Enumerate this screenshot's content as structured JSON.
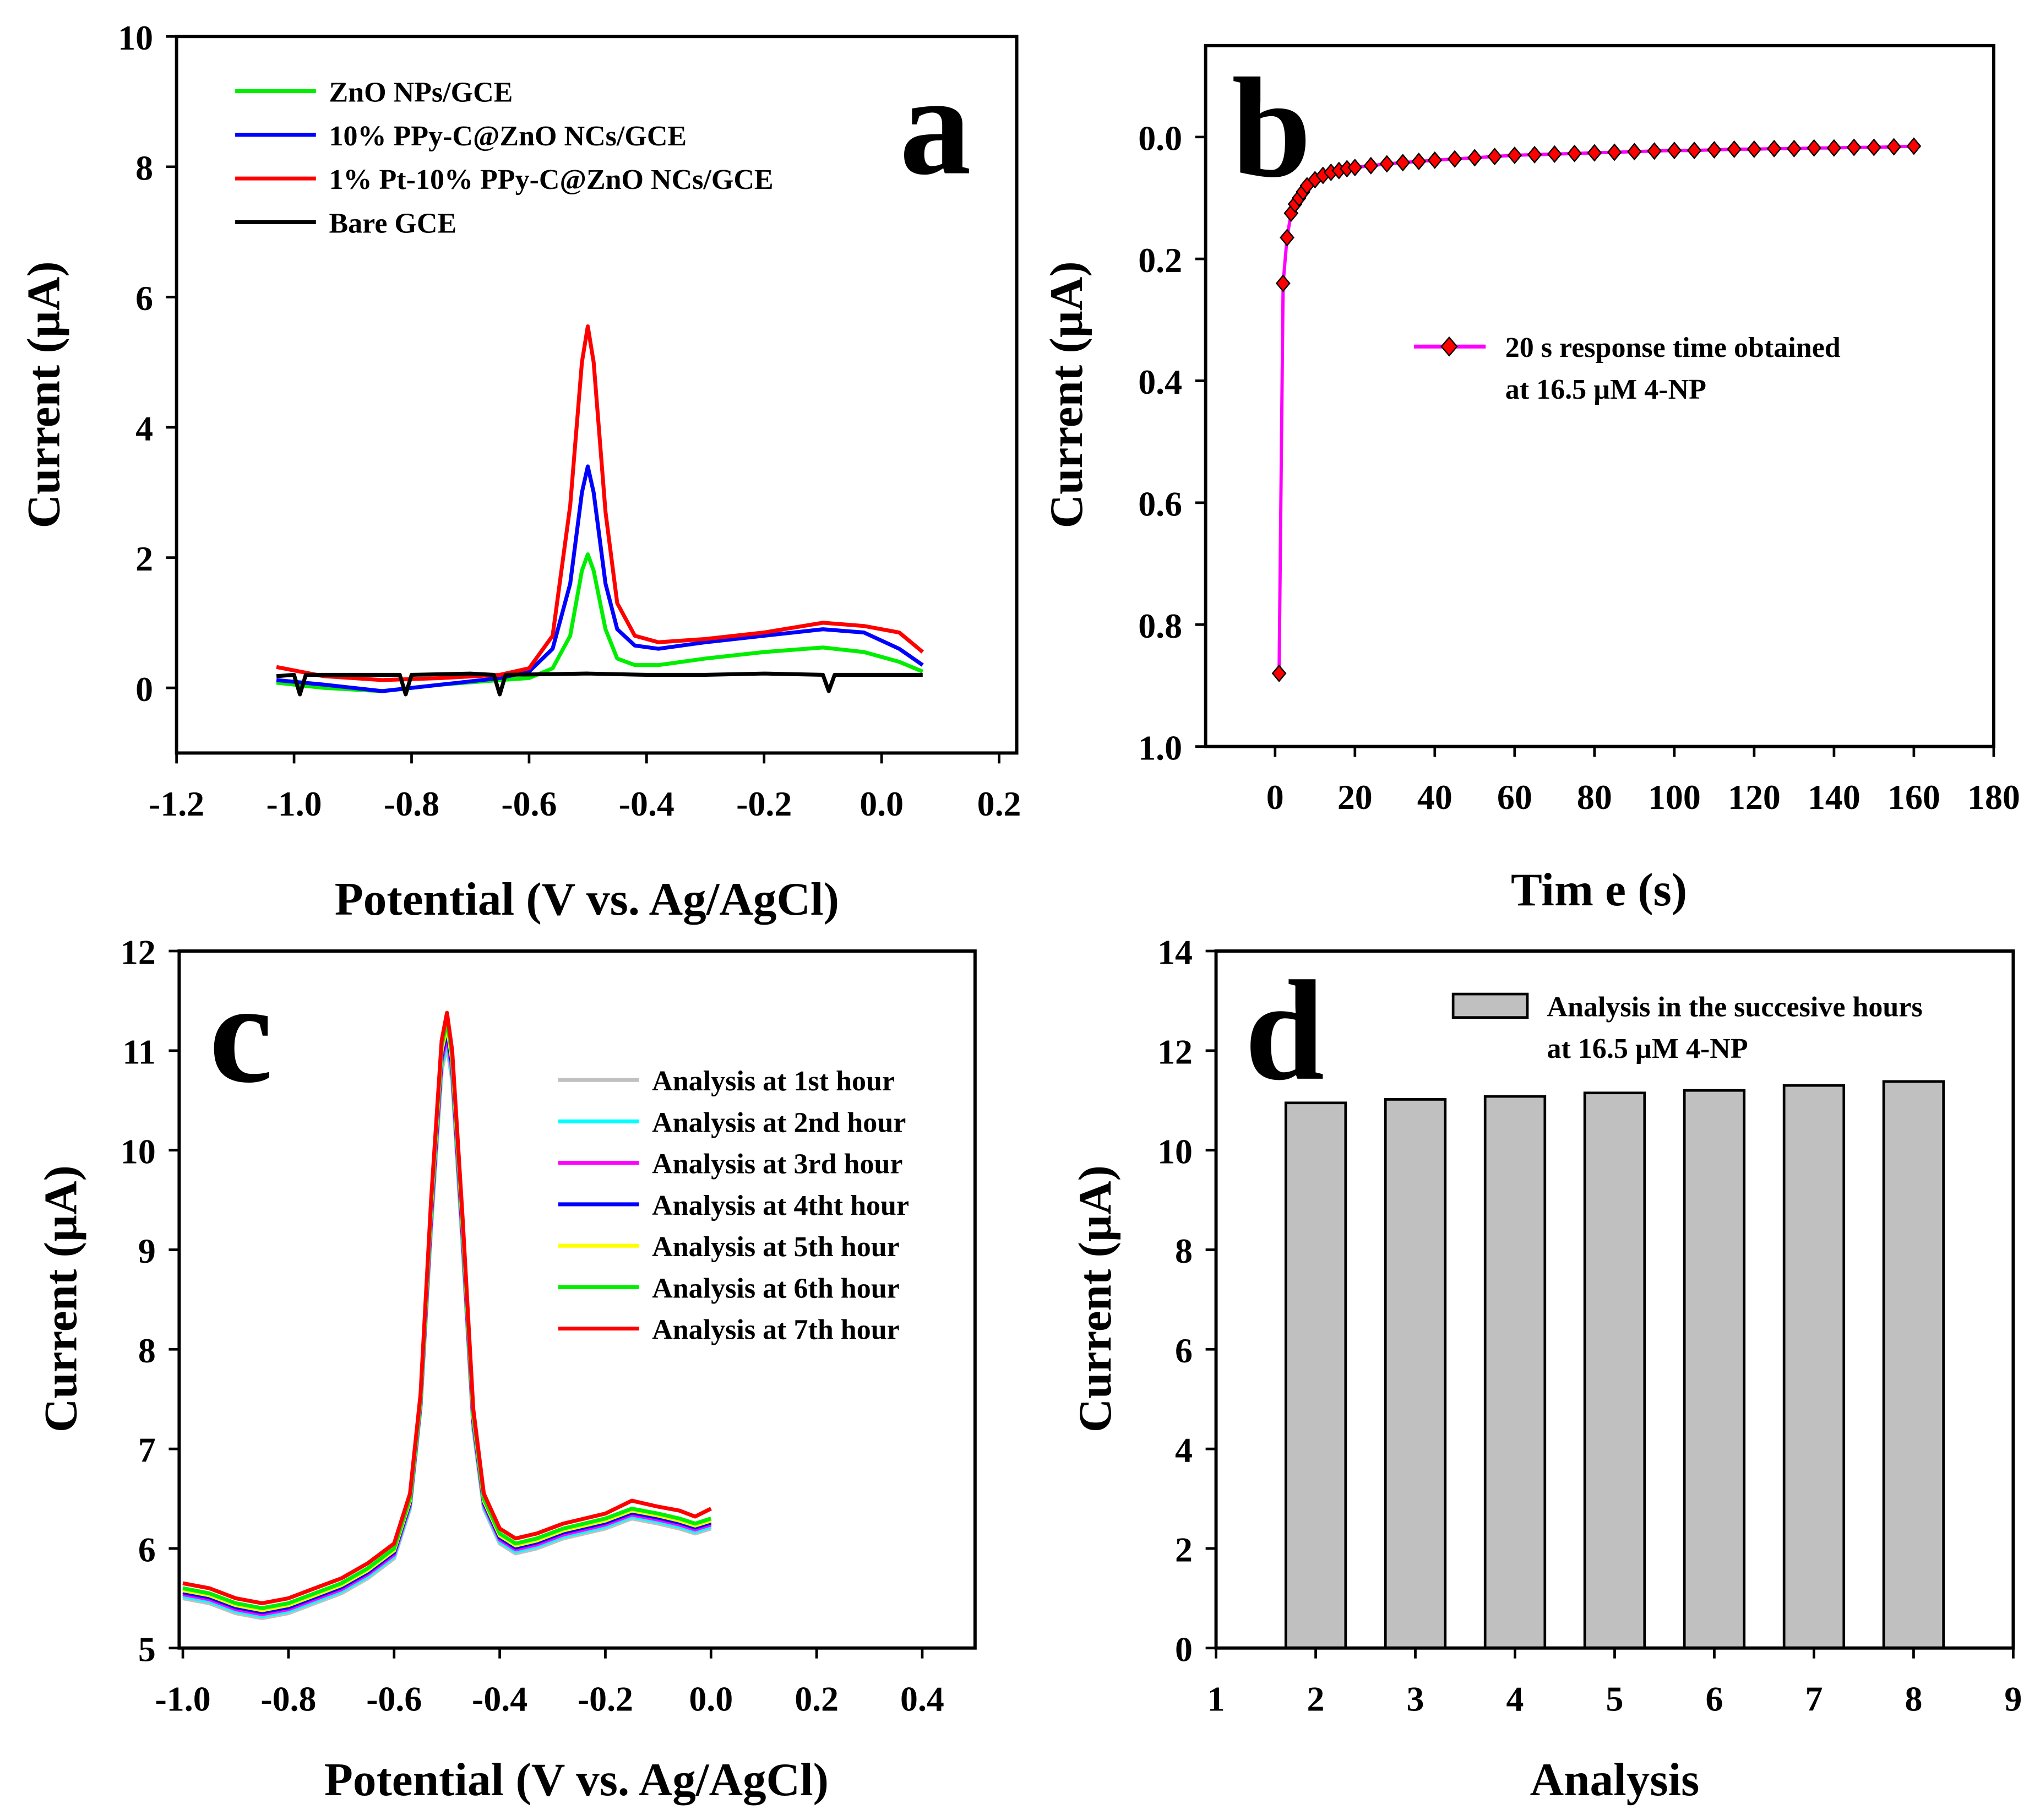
{
  "chart_data": [
    {
      "id": "a",
      "type": "line",
      "panel_label": "a",
      "xlabel": "Potential (V vs. Ag/AgCl)",
      "ylabel": "Current (µA)",
      "xlim": [
        -1.2,
        0.23
      ],
      "ylim": [
        -1,
        10
      ],
      "xticks": [
        -1.2,
        -1.0,
        -0.8,
        -0.6,
        -0.4,
        -0.2,
        0.0,
        0.2
      ],
      "xtick_labels": [
        "-1.2",
        "-1.0",
        "-0.8",
        "-0.6",
        "-0.4",
        "-0.2",
        "0.0",
        "0.2"
      ],
      "yticks": [
        0,
        2,
        4,
        6,
        8,
        10
      ],
      "ytick_labels": [
        "0",
        "2",
        "4",
        "6",
        "8",
        "10"
      ],
      "legend_position": "top-left",
      "series": [
        {
          "name": "ZnO NPs/GCE",
          "color": "#00ee00",
          "x": [
            -1.03,
            -0.95,
            -0.85,
            -0.75,
            -0.65,
            -0.6,
            -0.56,
            -0.53,
            -0.51,
            -0.5,
            -0.49,
            -0.47,
            -0.45,
            -0.42,
            -0.38,
            -0.3,
            -0.2,
            -0.1,
            -0.03,
            0.03,
            0.07
          ],
          "y": [
            0.08,
            0.0,
            -0.05,
            0.05,
            0.12,
            0.15,
            0.3,
            0.8,
            1.8,
            2.05,
            1.8,
            0.9,
            0.45,
            0.35,
            0.35,
            0.45,
            0.55,
            0.62,
            0.55,
            0.4,
            0.25
          ]
        },
        {
          "name": "10% PPy-C@ZnO NCs/GCE",
          "color": "#0000ff",
          "x": [
            -1.03,
            -0.95,
            -0.85,
            -0.75,
            -0.65,
            -0.6,
            -0.56,
            -0.53,
            -0.51,
            -0.5,
            -0.49,
            -0.47,
            -0.45,
            -0.42,
            -0.38,
            -0.3,
            -0.2,
            -0.1,
            -0.03,
            0.03,
            0.07
          ],
          "y": [
            0.12,
            0.05,
            -0.05,
            0.05,
            0.15,
            0.25,
            0.6,
            1.6,
            3.0,
            3.4,
            3.0,
            1.6,
            0.9,
            0.65,
            0.6,
            0.7,
            0.8,
            0.9,
            0.85,
            0.6,
            0.35
          ]
        },
        {
          "name": "1% Pt-10% PPy-C@ZnO NCs/GCE",
          "color": "#ff0000",
          "x": [
            -1.03,
            -0.95,
            -0.85,
            -0.75,
            -0.65,
            -0.6,
            -0.56,
            -0.53,
            -0.51,
            -0.5,
            -0.49,
            -0.47,
            -0.45,
            -0.42,
            -0.38,
            -0.3,
            -0.2,
            -0.1,
            -0.03,
            0.03,
            0.07
          ],
          "y": [
            0.32,
            0.18,
            0.12,
            0.15,
            0.2,
            0.3,
            0.8,
            2.8,
            5.0,
            5.55,
            5.0,
            2.7,
            1.3,
            0.8,
            0.7,
            0.75,
            0.85,
            1.0,
            0.95,
            0.85,
            0.55
          ]
        },
        {
          "name": "Bare GCE",
          "color": "#000000",
          "x": [
            -1.03,
            -1.0,
            -0.99,
            -0.98,
            -0.9,
            -0.82,
            -0.81,
            -0.8,
            -0.7,
            -0.66,
            -0.65,
            -0.64,
            -0.5,
            -0.4,
            -0.3,
            -0.2,
            -0.1,
            -0.09,
            -0.08,
            0.0,
            0.07
          ],
          "y": [
            0.18,
            0.2,
            -0.1,
            0.2,
            0.2,
            0.2,
            -0.1,
            0.2,
            0.22,
            0.2,
            -0.1,
            0.2,
            0.22,
            0.2,
            0.2,
            0.22,
            0.2,
            -0.05,
            0.2,
            0.2,
            0.2
          ]
        }
      ]
    },
    {
      "id": "b",
      "type": "line",
      "panel_label": "b",
      "xlabel": "Tim e (s)",
      "ylabel": "Current (µA)",
      "xlim": [
        -17.4,
        180
      ],
      "ylim": [
        1.0,
        -0.15
      ],
      "y_inverted": true,
      "xticks": [
        0,
        20,
        40,
        60,
        80,
        100,
        120,
        140,
        160,
        180
      ],
      "xtick_labels": [
        "0",
        "20",
        "40",
        "60",
        "80",
        "100",
        "120",
        "140",
        "160",
        "180"
      ],
      "yticks": [
        0.0,
        0.2,
        0.4,
        0.6,
        0.8,
        1.0
      ],
      "ytick_labels": [
        "0.0",
        "0.2",
        "0.4",
        "0.6",
        "0.8",
        "1.0"
      ],
      "legend_position": "center-right",
      "legend_lines": [
        "20 s response time obtained",
        "at 16.5 µM 4-NP"
      ],
      "series": [
        {
          "name": "20 s response time obtained at 16.5 µM 4-NP",
          "line_color": "#ff00ff",
          "marker_color": "#ff0000",
          "x": [
            1,
            2,
            3,
            4,
            5,
            6,
            7,
            8,
            10,
            12,
            14,
            16,
            18,
            20,
            24,
            28,
            32,
            36,
            40,
            45,
            50,
            55,
            60,
            65,
            70,
            75,
            80,
            85,
            90,
            95,
            100,
            105,
            110,
            115,
            120,
            125,
            130,
            135,
            140,
            145,
            150,
            155,
            160
          ],
          "y": [
            0.88,
            0.24,
            0.165,
            0.125,
            0.11,
            0.1,
            0.09,
            0.08,
            0.07,
            0.063,
            0.058,
            0.055,
            0.052,
            0.05,
            0.047,
            0.044,
            0.042,
            0.04,
            0.038,
            0.036,
            0.034,
            0.032,
            0.03,
            0.029,
            0.028,
            0.027,
            0.026,
            0.025,
            0.024,
            0.023,
            0.022,
            0.022,
            0.021,
            0.02,
            0.02,
            0.019,
            0.019,
            0.018,
            0.018,
            0.017,
            0.017,
            0.016,
            0.015
          ]
        }
      ]
    },
    {
      "id": "c",
      "type": "line",
      "panel_label": "c",
      "xlabel": "Potential (V vs. Ag/AgCl)",
      "ylabel": "Current (µA)",
      "xlim": [
        -1.007,
        0.5
      ],
      "ylim": [
        5,
        12
      ],
      "xticks": [
        -1.0,
        -0.8,
        -0.6,
        -0.4,
        -0.2,
        0.0,
        0.2,
        0.4
      ],
      "xtick_labels": [
        "-1.0",
        "-0.8",
        "-0.6",
        "-0.4",
        "-0.2",
        "0.0",
        "0.2",
        "0.4"
      ],
      "yticks": [
        5,
        6,
        7,
        8,
        9,
        10,
        11,
        12
      ],
      "ytick_labels": [
        "5",
        "6",
        "7",
        "8",
        "9",
        "10",
        "11",
        "12"
      ],
      "legend_position": "top-right",
      "base_x": [
        -1.0,
        -0.95,
        -0.9,
        -0.85,
        -0.8,
        -0.75,
        -0.7,
        -0.65,
        -0.6,
        -0.57,
        -0.55,
        -0.53,
        -0.51,
        -0.5,
        -0.49,
        -0.47,
        -0.45,
        -0.43,
        -0.4,
        -0.37,
        -0.33,
        -0.28,
        -0.2,
        -0.15,
        -0.1,
        -0.06,
        -0.03,
        0.0
      ],
      "series": [
        {
          "name": "Analysis at 1st hour",
          "color": "#c0c0c0",
          "y": [
            5.5,
            5.45,
            5.35,
            5.3,
            5.35,
            5.45,
            5.55,
            5.7,
            5.9,
            6.4,
            7.4,
            9.2,
            10.8,
            11.05,
            10.7,
            9.0,
            7.2,
            6.4,
            6.05,
            5.95,
            6.0,
            6.1,
            6.2,
            6.3,
            6.25,
            6.2,
            6.15,
            6.2
          ]
        },
        {
          "name": "Analysis at 2nd hour",
          "color": "#00ffff",
          "y": [
            5.52,
            5.47,
            5.37,
            5.32,
            5.37,
            5.47,
            5.57,
            5.72,
            5.92,
            6.42,
            7.42,
            9.25,
            10.85,
            11.1,
            10.75,
            9.05,
            7.23,
            6.42,
            6.07,
            5.97,
            6.02,
            6.12,
            6.22,
            6.32,
            6.27,
            6.22,
            6.17,
            6.22
          ]
        },
        {
          "name": "Analysis at 3rd hour",
          "color": "#ff00ff",
          "y": [
            5.54,
            5.49,
            5.39,
            5.34,
            5.39,
            5.49,
            5.59,
            5.74,
            5.94,
            6.44,
            7.44,
            9.3,
            10.9,
            11.15,
            10.8,
            9.1,
            7.26,
            6.44,
            6.09,
            5.99,
            6.04,
            6.14,
            6.24,
            6.34,
            6.29,
            6.24,
            6.19,
            6.24
          ]
        },
        {
          "name": "Analysis at 4tht hour",
          "color": "#0000ff",
          "y": [
            5.56,
            5.51,
            5.41,
            5.36,
            5.41,
            5.51,
            5.61,
            5.76,
            5.96,
            6.46,
            7.46,
            9.35,
            10.95,
            11.2,
            10.85,
            9.15,
            7.29,
            6.46,
            6.11,
            6.01,
            6.06,
            6.16,
            6.26,
            6.36,
            6.31,
            6.26,
            6.21,
            6.26
          ]
        },
        {
          "name": "Analysis at 5th hour",
          "color": "#ffff00",
          "y": [
            5.58,
            5.53,
            5.43,
            5.38,
            5.43,
            5.53,
            5.63,
            5.78,
            5.98,
            6.48,
            7.48,
            9.4,
            11.0,
            11.25,
            10.9,
            9.2,
            7.32,
            6.48,
            6.13,
            6.03,
            6.08,
            6.18,
            6.28,
            6.38,
            6.33,
            6.28,
            6.23,
            6.28
          ]
        },
        {
          "name": "Analysis at 6th hour",
          "color": "#00ee00",
          "y": [
            5.6,
            5.55,
            5.45,
            5.4,
            5.45,
            5.55,
            5.65,
            5.8,
            6.0,
            6.5,
            7.5,
            9.45,
            11.05,
            11.3,
            10.95,
            9.25,
            7.35,
            6.5,
            6.15,
            6.05,
            6.1,
            6.2,
            6.3,
            6.4,
            6.35,
            6.3,
            6.25,
            6.3
          ]
        },
        {
          "name": "Analysis at 7th hour",
          "color": "#ff0000",
          "y": [
            5.65,
            5.6,
            5.5,
            5.45,
            5.5,
            5.6,
            5.7,
            5.85,
            6.05,
            6.55,
            7.55,
            9.5,
            11.1,
            11.38,
            11.0,
            9.3,
            7.4,
            6.55,
            6.2,
            6.1,
            6.15,
            6.25,
            6.35,
            6.48,
            6.42,
            6.38,
            6.32,
            6.4
          ]
        }
      ]
    },
    {
      "id": "d",
      "type": "bar",
      "panel_label": "d",
      "xlabel": "Analysis",
      "ylabel": "Current (µA)",
      "xlim": [
        1,
        9
      ],
      "ylim": [
        0,
        14
      ],
      "xticks": [
        1,
        2,
        3,
        4,
        5,
        6,
        7,
        8,
        9
      ],
      "xtick_labels": [
        "1",
        "2",
        "3",
        "4",
        "5",
        "6",
        "7",
        "8",
        "9"
      ],
      "yticks": [
        0,
        2,
        4,
        6,
        8,
        10,
        12,
        14
      ],
      "ytick_labels": [
        "0",
        "2",
        "4",
        "6",
        "8",
        "10",
        "12",
        "14"
      ],
      "legend_position": "top-right",
      "legend_lines": [
        "Analysis in the succesive hours",
        "at 16.5 µM 4-NP"
      ],
      "categories": [
        2,
        3,
        4,
        5,
        6,
        7,
        8
      ],
      "values": [
        10.95,
        11.02,
        11.08,
        11.15,
        11.2,
        11.3,
        11.38
      ],
      "bar_color": "#c0c0c0"
    }
  ]
}
